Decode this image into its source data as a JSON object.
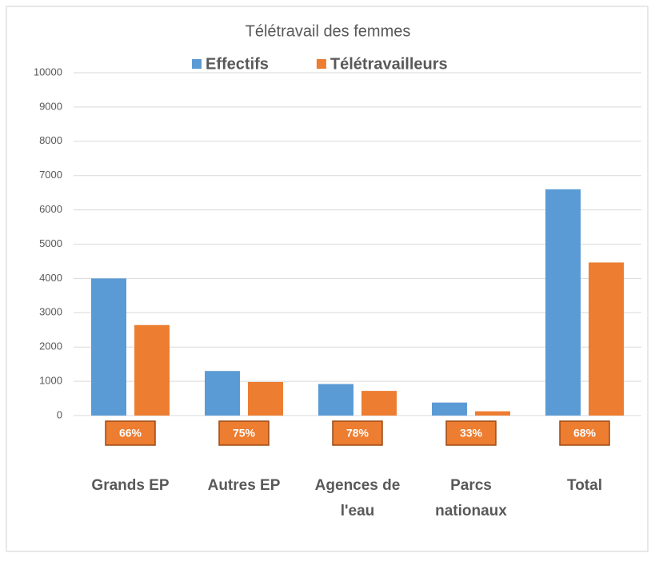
{
  "chart_data": {
    "type": "bar",
    "title": "Télétravail des femmes",
    "categories": [
      "Grands EP",
      "Autres EP",
      "Agences de l'eau",
      "Parcs nationaux",
      "Total"
    ],
    "series": [
      {
        "name": "Effectifs",
        "color": "#5b9bd5",
        "values": [
          4000,
          1300,
          920,
          380,
          6600
        ]
      },
      {
        "name": "Télétravailleurs",
        "color": "#ed7d31",
        "values": [
          2640,
          980,
          720,
          125,
          4465
        ]
      }
    ],
    "annotations": [
      "66%",
      "75%",
      "78%",
      "33%",
      "68%"
    ],
    "ylim": [
      0,
      10000
    ],
    "yticks": [
      0,
      1000,
      2000,
      3000,
      4000,
      5000,
      6000,
      7000,
      8000,
      9000,
      10000
    ],
    "grid": true,
    "legend": "top"
  }
}
